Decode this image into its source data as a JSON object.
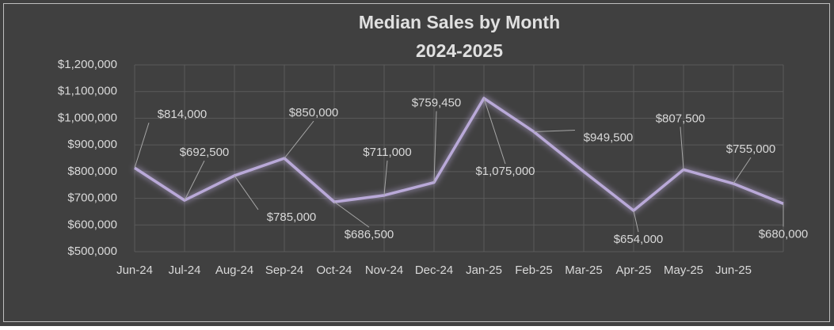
{
  "chart_data": {
    "type": "line",
    "title": "Median Sales by Month",
    "subtitle": "2024-2025",
    "categories": [
      "Jun-24",
      "Jul-24",
      "Aug-24",
      "Sep-24",
      "Oct-24",
      "Nov-24",
      "Dec-24",
      "Jan-25",
      "Feb-25",
      "Mar-25",
      "Apr-25",
      "May-25",
      "Jun-25",
      null
    ],
    "values": [
      814000,
      692500,
      785000,
      850000,
      686500,
      711000,
      759450,
      1075000,
      949500,
      800000,
      654000,
      807500,
      755000,
      680000
    ],
    "value_labels": [
      "$814,000",
      "$692,500",
      "$785,000",
      "$850,000",
      "$686,500",
      "$711,000",
      "$759,450",
      "$1,075,000",
      "$949,500",
      null,
      "$654,000",
      "$807,500",
      "$755,000",
      "$680,000"
    ],
    "color": "#b9a9d8",
    "ylim": [
      500000,
      1200000
    ],
    "yticks": [
      {
        "value": 500000,
        "label": "$500,000"
      },
      {
        "value": 600000,
        "label": "$600,000"
      },
      {
        "value": 700000,
        "label": "$700,000"
      },
      {
        "value": 800000,
        "label": "$800,000"
      },
      {
        "value": 900000,
        "label": "$900,000"
      },
      {
        "value": 1000000,
        "label": "$1,000,000"
      },
      {
        "value": 1100000,
        "label": "$1,100,000"
      },
      {
        "value": 1200000,
        "label": "$1,200,000"
      }
    ],
    "grid": true
  }
}
